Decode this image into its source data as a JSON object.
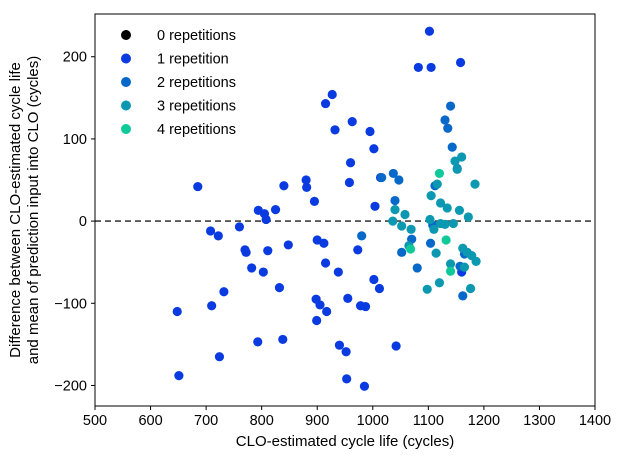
{
  "chart_data": {
    "type": "scatter",
    "xlabel": "CLO-estimated cycle life (cycles)",
    "ylabel_lines": [
      "Difference between CLO-estimated cycle life",
      "and mean of prediction input into CLO (cycles)"
    ],
    "xlim": [
      500,
      1400
    ],
    "ylim": [
      -225,
      252
    ],
    "xticks": [
      500,
      600,
      700,
      800,
      900,
      1000,
      1100,
      1200,
      1300,
      1400
    ],
    "yticks": [
      -200,
      -100,
      0,
      100,
      200
    ],
    "grid": false,
    "legend_position": "top-left",
    "reference_line": {
      "y": 0,
      "style": "dashed",
      "color": "#404040"
    },
    "series": [
      {
        "name": "0 repetitions",
        "color": "#000000",
        "points": []
      },
      {
        "name": "1 repetition",
        "color": "#0a3be0",
        "points": [
          [
            648,
            -110
          ],
          [
            651,
            -188
          ],
          [
            685,
            42
          ],
          [
            708,
            -12
          ],
          [
            710,
            -103
          ],
          [
            722,
            -18
          ],
          [
            724,
            -165
          ],
          [
            732,
            -86
          ],
          [
            760,
            -7
          ],
          [
            770,
            -35
          ],
          [
            772,
            -38
          ],
          [
            782,
            -57
          ],
          [
            793,
            -147
          ],
          [
            794,
            13
          ],
          [
            803,
            -62
          ],
          [
            805,
            9
          ],
          [
            808,
            2
          ],
          [
            811,
            -36
          ],
          [
            825,
            14
          ],
          [
            832,
            -81
          ],
          [
            838,
            -144
          ],
          [
            840,
            43
          ],
          [
            848,
            -29
          ],
          [
            880,
            50
          ],
          [
            881,
            41
          ],
          [
            895,
            24
          ],
          [
            898,
            -95
          ],
          [
            899,
            -121
          ],
          [
            900,
            -23
          ],
          [
            905,
            -102
          ],
          [
            912,
            -27
          ],
          [
            915,
            -51
          ],
          [
            915,
            143
          ],
          [
            917,
            -110
          ],
          [
            927,
            154
          ],
          [
            932,
            111
          ],
          [
            938,
            -62
          ],
          [
            940,
            -151
          ],
          [
            952,
            -159
          ],
          [
            953,
            -192
          ],
          [
            955,
            -94
          ],
          [
            958,
            47
          ],
          [
            960,
            71
          ],
          [
            963,
            121
          ],
          [
            973,
            -35
          ],
          [
            978,
            -103
          ],
          [
            985,
            -201
          ],
          [
            987,
            -104
          ],
          [
            995,
            109
          ],
          [
            1002,
            -71
          ],
          [
            1002,
            88
          ],
          [
            1004,
            18
          ],
          [
            1012,
            -82
          ],
          [
            1014,
            53
          ],
          [
            1042,
            -152
          ],
          [
            1082,
            187
          ],
          [
            1102,
            231
          ],
          [
            1105,
            187
          ],
          [
            1158,
            193
          ],
          [
            1160,
            -62
          ]
        ]
      },
      {
        "name": "2 repetitions",
        "color": "#0668c8",
        "points": [
          [
            980,
            -18
          ],
          [
            1016,
            53
          ],
          [
            1037,
            58
          ],
          [
            1040,
            25
          ],
          [
            1047,
            50
          ],
          [
            1052,
            -38
          ],
          [
            1070,
            -22
          ],
          [
            1080,
            -57
          ],
          [
            1104,
            -27
          ],
          [
            1108,
            -5
          ],
          [
            1112,
            43
          ],
          [
            1130,
            123
          ],
          [
            1135,
            113
          ],
          [
            1140,
            140
          ],
          [
            1143,
            90
          ],
          [
            1152,
            64
          ],
          [
            1157,
            -55
          ],
          [
            1162,
            -91
          ],
          [
            1165,
            -40
          ]
        ]
      },
      {
        "name": "3 repetitions",
        "color": "#0b98b0",
        "points": [
          [
            1036,
            0
          ],
          [
            1040,
            14
          ],
          [
            1052,
            -6
          ],
          [
            1058,
            8
          ],
          [
            1065,
            -30
          ],
          [
            1069,
            -10
          ],
          [
            1098,
            -83
          ],
          [
            1103,
            2
          ],
          [
            1105,
            31
          ],
          [
            1110,
            -10
          ],
          [
            1114,
            -39
          ],
          [
            1116,
            45
          ],
          [
            1120,
            -75
          ],
          [
            1122,
            -3
          ],
          [
            1122,
            22
          ],
          [
            1130,
            -4
          ],
          [
            1134,
            16
          ],
          [
            1140,
            -52
          ],
          [
            1145,
            -3
          ],
          [
            1148,
            73
          ],
          [
            1152,
            63
          ],
          [
            1156,
            13
          ],
          [
            1160,
            78
          ],
          [
            1162,
            -33
          ],
          [
            1165,
            -56
          ],
          [
            1170,
            -38
          ],
          [
            1172,
            5
          ],
          [
            1176,
            -82
          ],
          [
            1178,
            -42
          ],
          [
            1184,
            45
          ],
          [
            1186,
            -49
          ]
        ]
      },
      {
        "name": "4 repetitions",
        "color": "#0fc99a",
        "points": [
          [
            1068,
            -34
          ],
          [
            1120,
            58
          ],
          [
            1132,
            -23
          ],
          [
            1140,
            -61
          ]
        ]
      }
    ]
  }
}
